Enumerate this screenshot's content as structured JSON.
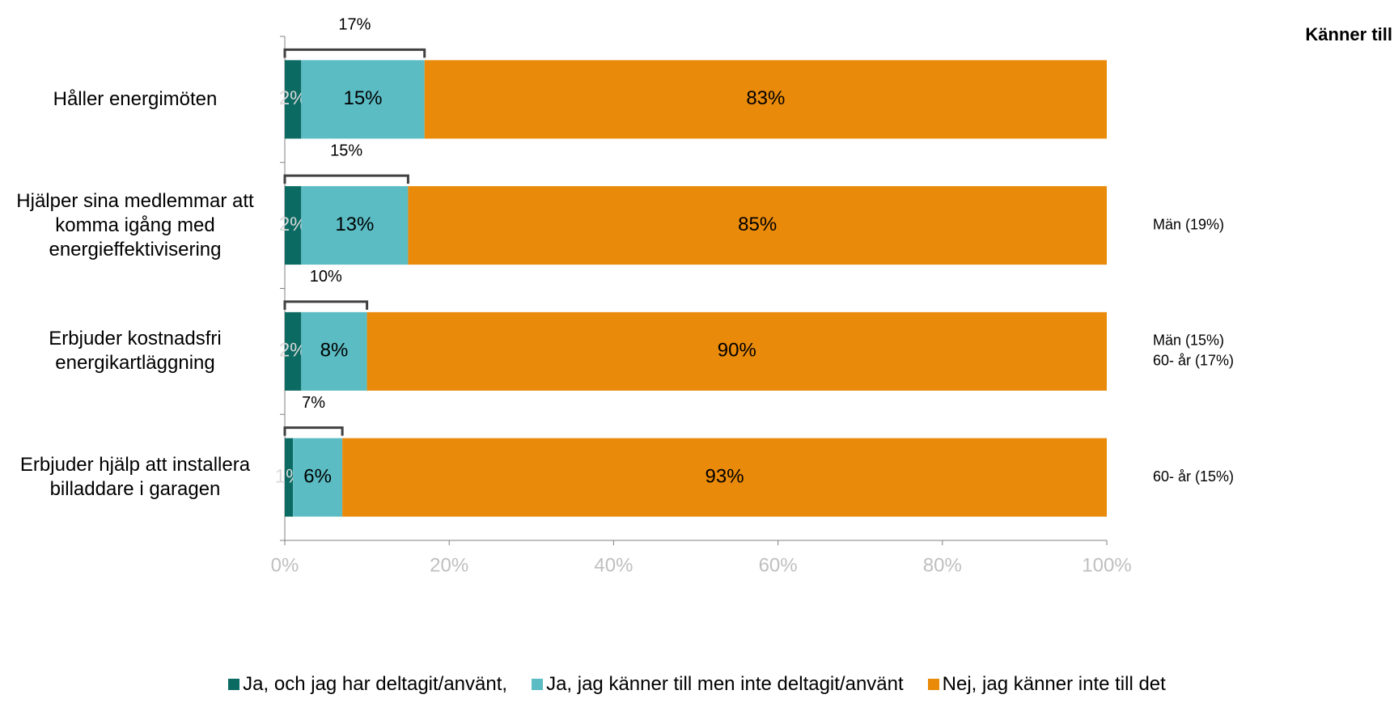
{
  "chart_data": {
    "type": "stacked_bar_horizontal",
    "categories": [
      "Håller energimöten",
      "Hjälper sina medlemmar att komma igång med energieffektivisering",
      "Erbjuder kostnadsfri energikartläggning",
      "Erbjuder hjälp att installera billaddare i garagen"
    ],
    "series": [
      {
        "name": "Ja, och jag har deltagit/använt,",
        "color": "#0b6b63",
        "values": [
          2,
          2,
          2,
          1
        ],
        "value_labels": [
          "2%",
          "2%",
          "2%",
          "1%"
        ]
      },
      {
        "name": "Ja, jag känner till men inte deltagit/använt",
        "color": "#5bbcc4",
        "values": [
          15,
          13,
          8,
          6
        ],
        "value_labels": [
          "15%",
          "13%",
          "8%",
          "6%"
        ]
      },
      {
        "name": "Nej, jag känner inte till det",
        "color": "#e98a0a",
        "values": [
          83,
          85,
          90,
          93
        ],
        "value_labels": [
          "83%",
          "85%",
          "90%",
          "93%"
        ]
      }
    ],
    "totals": {
      "values": [
        17,
        15,
        10,
        7
      ],
      "value_labels": [
        "17%",
        "15%",
        "10%",
        "7%"
      ]
    },
    "side_title": "Känner till",
    "side_notes": [
      [],
      [
        "Män (19%)"
      ],
      [
        "Män (15%)",
        "60- år (17%)"
      ],
      [
        "60- år (15%)"
      ]
    ],
    "xlim": [
      0,
      100
    ],
    "xticks": [
      {
        "value": 0,
        "label": "0%"
      },
      {
        "value": 20,
        "label": "20%"
      },
      {
        "value": 40,
        "label": "40%"
      },
      {
        "value": 60,
        "label": "60%"
      },
      {
        "value": 80,
        "label": "80%"
      },
      {
        "value": 100,
        "label": "100%"
      }
    ],
    "legend": "bottom"
  }
}
